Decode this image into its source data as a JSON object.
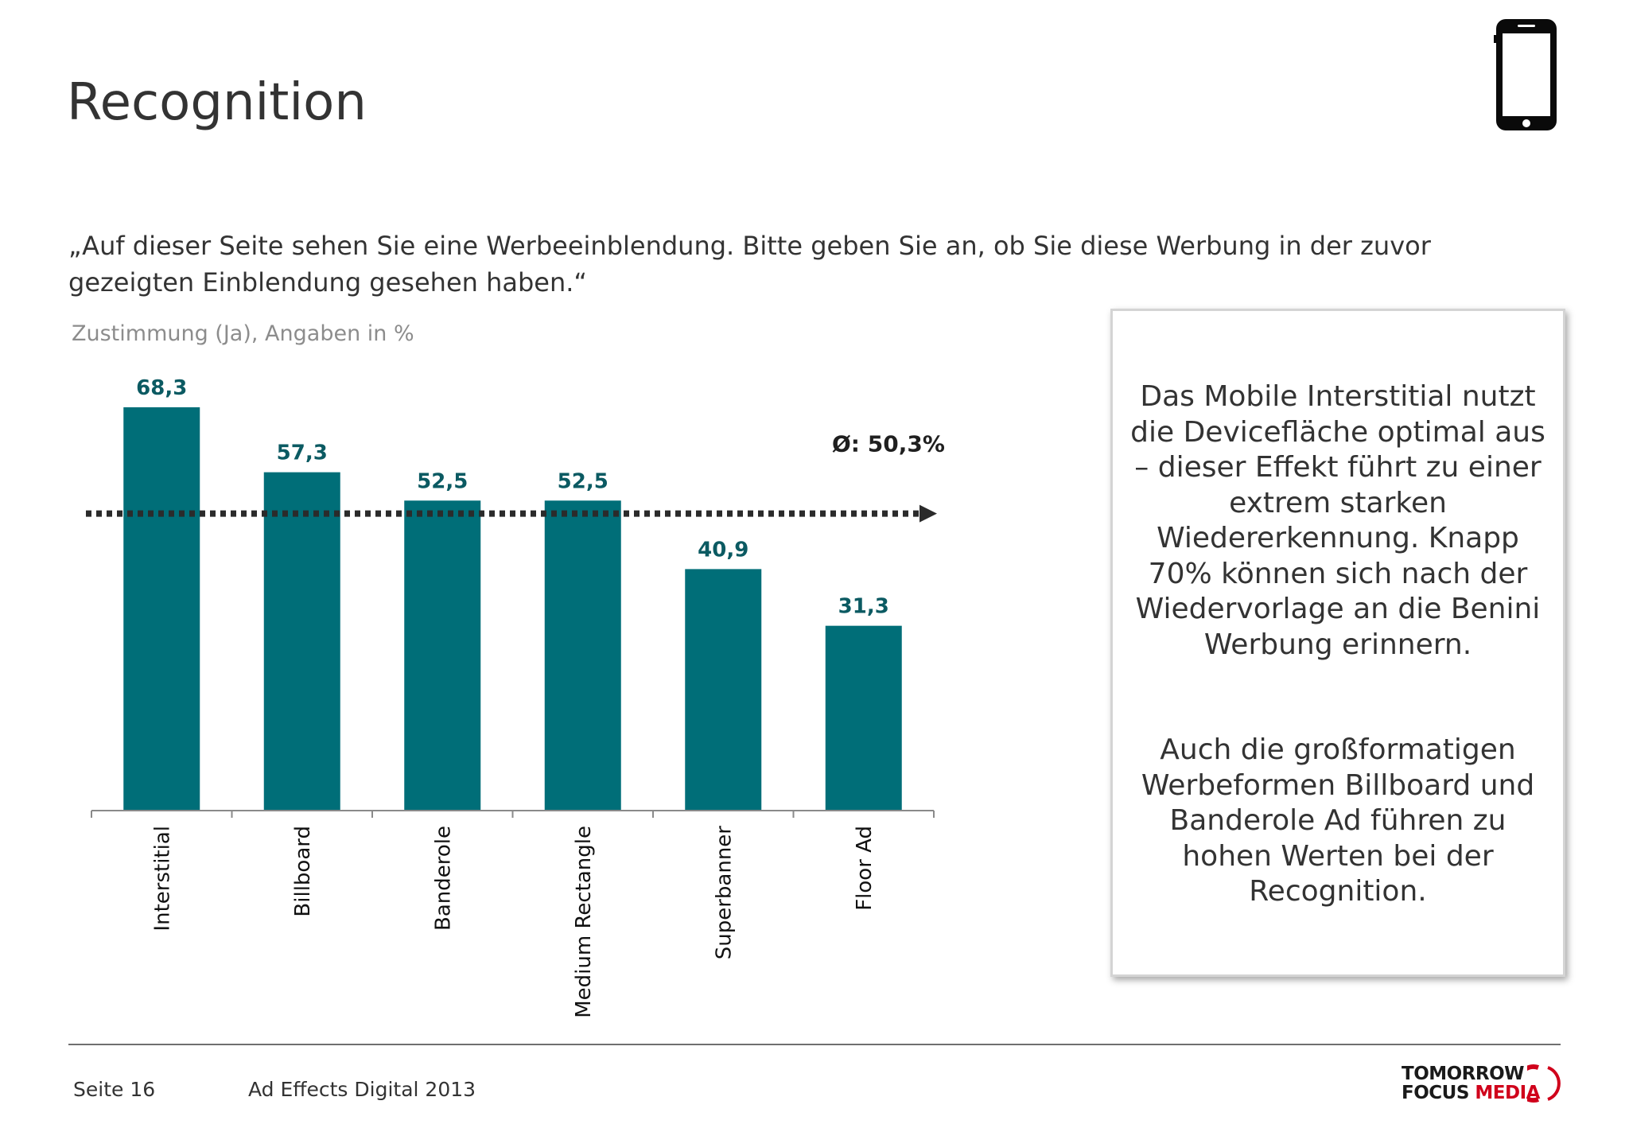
{
  "page": {
    "title": "Recognition",
    "question": "„Auf dieser Seite sehen Sie eine Werbeeinblendung. Bitte geben Sie an, ob Sie diese Werbung in der zuvor gezeigten Einblendung gesehen haben.“",
    "subtitle": "Zustimmung (Ja), Angaben in %",
    "icon": "smartphone-icon"
  },
  "chart_data": {
    "type": "bar",
    "categories": [
      "Interstitial",
      "Billboard",
      "Banderole",
      "Medium Rectangle",
      "Superbanner",
      "Floor Ad"
    ],
    "values": [
      68.3,
      57.3,
      52.5,
      52.5,
      40.9,
      31.3
    ],
    "value_labels": [
      "68,3",
      "57,3",
      "52,5",
      "52,5",
      "40,9",
      "31,3"
    ],
    "ylim": [
      0,
      68.3
    ],
    "average": 50.3,
    "average_label": "Ø: 50,3%",
    "colors": {
      "bar": "#006e78",
      "value_label": "#0b5a62",
      "average_line": "#2b2b2b"
    }
  },
  "callout": {
    "paragraph1": "Das Mobile Interstitial nutzt die Devicefläche optimal aus – dieser Effekt führt zu einer extrem starken Wiedererkennung. Knapp 70% können sich nach der Wiedervorlage an die Benini Werbung erinnern.",
    "paragraph2": "Auch die großformatigen Werbeformen Billboard und Banderole Ad führen zu hohen Werten bei der Recognition."
  },
  "footer": {
    "page": "Seite 16",
    "report": "Ad Effects Digital 2013",
    "logo_line1": "TOMORROW",
    "logo_line2a": "FOCUS ",
    "logo_line2b": "MEDIA"
  }
}
